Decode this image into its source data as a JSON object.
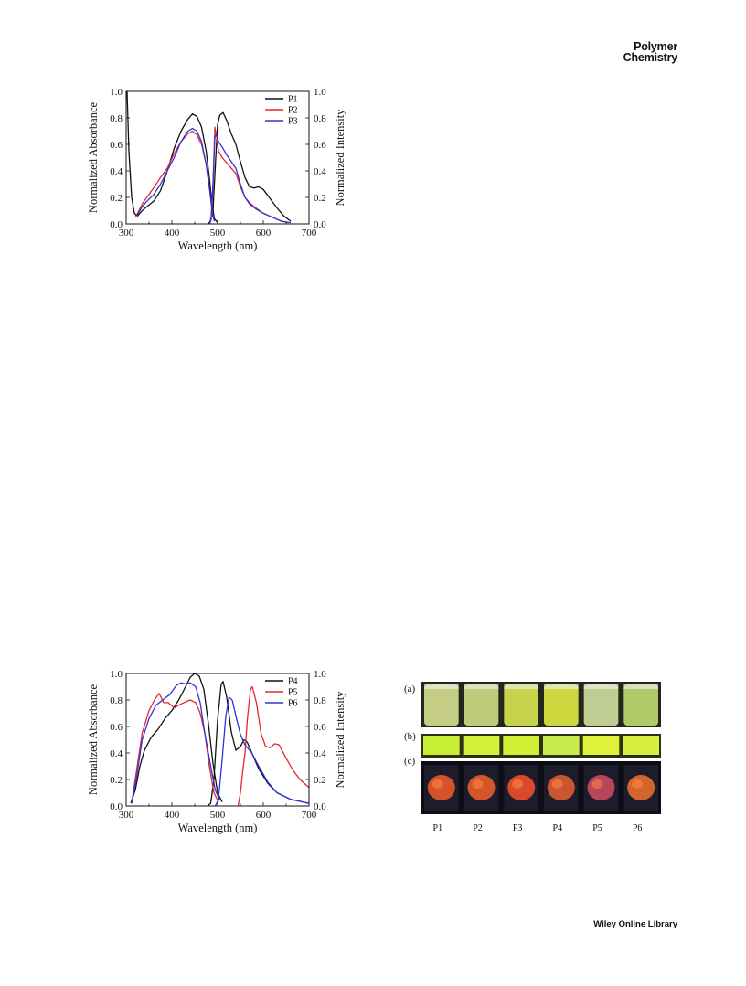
{
  "header": {
    "journal_line1": "Polymer",
    "journal_line2": "Chemistry"
  },
  "footer": {
    "publisher": "Wiley Online Library"
  },
  "chart_data": [
    {
      "type": "line",
      "xlabel": "Wavelength (nm)",
      "ylabel_left": "Normalized Absorbance",
      "ylabel_right": "Normalized Intensity",
      "xlim": [
        300,
        700
      ],
      "ylim": [
        0.0,
        1.0
      ],
      "xticks": [
        "300",
        "400",
        "500",
        "600",
        "700"
      ],
      "yticks": [
        "0.0",
        "0.2",
        "0.4",
        "0.6",
        "0.8",
        "1.0"
      ],
      "legend_position": "top-right",
      "series": [
        {
          "name": "P1",
          "color": "#111111",
          "absorption": [
            [
              302,
              1.0
            ],
            [
              306,
              0.55
            ],
            [
              312,
              0.2
            ],
            [
              318,
              0.08
            ],
            [
              325,
              0.06
            ],
            [
              335,
              0.1
            ],
            [
              345,
              0.13
            ],
            [
              360,
              0.17
            ],
            [
              375,
              0.25
            ],
            [
              390,
              0.4
            ],
            [
              405,
              0.57
            ],
            [
              420,
              0.7
            ],
            [
              435,
              0.79
            ],
            [
              445,
              0.83
            ],
            [
              455,
              0.81
            ],
            [
              465,
              0.73
            ],
            [
              475,
              0.55
            ],
            [
              482,
              0.35
            ],
            [
              488,
              0.15
            ],
            [
              493,
              0.04
            ],
            [
              500,
              0.01
            ]
          ],
          "emission": [
            [
              478,
              0.0
            ],
            [
              485,
              0.02
            ],
            [
              490,
              0.1
            ],
            [
              496,
              0.5
            ],
            [
              500,
              0.75
            ],
            [
              505,
              0.82
            ],
            [
              512,
              0.84
            ],
            [
              520,
              0.78
            ],
            [
              530,
              0.68
            ],
            [
              540,
              0.6
            ],
            [
              550,
              0.47
            ],
            [
              560,
              0.35
            ],
            [
              570,
              0.28
            ],
            [
              580,
              0.27
            ],
            [
              590,
              0.28
            ],
            [
              600,
              0.26
            ],
            [
              615,
              0.19
            ],
            [
              630,
              0.12
            ],
            [
              645,
              0.06
            ],
            [
              660,
              0.02
            ]
          ]
        },
        {
          "name": "P2",
          "color": "#e8262a",
          "absorption": [
            [
              320,
              0.06
            ],
            [
              325,
              0.08
            ],
            [
              335,
              0.15
            ],
            [
              345,
              0.2
            ],
            [
              360,
              0.27
            ],
            [
              375,
              0.35
            ],
            [
              390,
              0.42
            ],
            [
              405,
              0.53
            ],
            [
              420,
              0.62
            ],
            [
              435,
              0.68
            ],
            [
              445,
              0.7
            ],
            [
              455,
              0.67
            ],
            [
              465,
              0.6
            ],
            [
              475,
              0.45
            ],
            [
              483,
              0.25
            ],
            [
              488,
              0.1
            ],
            [
              492,
              0.03
            ]
          ],
          "emission": [
            [
              483,
              0.0
            ],
            [
              487,
              0.05
            ],
            [
              491,
              0.4
            ],
            [
              494,
              0.73
            ],
            [
              497,
              0.68
            ],
            [
              502,
              0.55
            ],
            [
              510,
              0.5
            ],
            [
              520,
              0.46
            ],
            [
              530,
              0.42
            ],
            [
              540,
              0.38
            ],
            [
              550,
              0.28
            ],
            [
              560,
              0.2
            ],
            [
              570,
              0.16
            ],
            [
              580,
              0.13
            ],
            [
              600,
              0.08
            ],
            [
              620,
              0.05
            ],
            [
              640,
              0.02
            ],
            [
              655,
              0.01
            ]
          ]
        },
        {
          "name": "P3",
          "color": "#2b35d8",
          "absorption": [
            [
              320,
              0.06
            ],
            [
              325,
              0.07
            ],
            [
              335,
              0.13
            ],
            [
              345,
              0.17
            ],
            [
              360,
              0.22
            ],
            [
              375,
              0.3
            ],
            [
              390,
              0.4
            ],
            [
              405,
              0.5
            ],
            [
              420,
              0.62
            ],
            [
              435,
              0.7
            ],
            [
              445,
              0.72
            ],
            [
              455,
              0.7
            ],
            [
              465,
              0.62
            ],
            [
              475,
              0.45
            ],
            [
              483,
              0.25
            ],
            [
              488,
              0.1
            ],
            [
              493,
              0.02
            ]
          ],
          "emission": [
            [
              482,
              0.0
            ],
            [
              486,
              0.05
            ],
            [
              490,
              0.3
            ],
            [
              494,
              0.65
            ],
            [
              497,
              0.68
            ],
            [
              502,
              0.62
            ],
            [
              510,
              0.58
            ],
            [
              520,
              0.52
            ],
            [
              530,
              0.47
            ],
            [
              540,
              0.42
            ],
            [
              550,
              0.3
            ],
            [
              560,
              0.2
            ],
            [
              570,
              0.15
            ],
            [
              585,
              0.11
            ],
            [
              600,
              0.08
            ],
            [
              620,
              0.05
            ],
            [
              640,
              0.02
            ],
            [
              660,
              0.01
            ]
          ]
        }
      ]
    },
    {
      "type": "line",
      "xlabel": "Wavelength (nm)",
      "ylabel_left": "Normalized Absorbance",
      "ylabel_right": "Normalized Intensity",
      "xlim": [
        300,
        700
      ],
      "ylim": [
        0.0,
        1.0
      ],
      "xticks": [
        "300",
        "400",
        "500",
        "600",
        "700"
      ],
      "yticks": [
        "0.0",
        "0.2",
        "0.4",
        "0.6",
        "0.8",
        "1.0"
      ],
      "legend_position": "top-right",
      "series": [
        {
          "name": "P4",
          "color": "#111111",
          "absorption": [
            [
              310,
              0.02
            ],
            [
              320,
              0.12
            ],
            [
              330,
              0.3
            ],
            [
              340,
              0.42
            ],
            [
              355,
              0.52
            ],
            [
              370,
              0.58
            ],
            [
              385,
              0.66
            ],
            [
              400,
              0.72
            ],
            [
              415,
              0.8
            ],
            [
              430,
              0.9
            ],
            [
              440,
              0.97
            ],
            [
              450,
              1.0
            ],
            [
              460,
              0.98
            ],
            [
              470,
              0.88
            ],
            [
              480,
              0.62
            ],
            [
              490,
              0.32
            ],
            [
              500,
              0.1
            ],
            [
              510,
              0.03
            ]
          ],
          "emission": [
            [
              478,
              0.0
            ],
            [
              485,
              0.02
            ],
            [
              492,
              0.2
            ],
            [
              500,
              0.65
            ],
            [
              508,
              0.92
            ],
            [
              512,
              0.94
            ],
            [
              520,
              0.82
            ],
            [
              530,
              0.56
            ],
            [
              540,
              0.42
            ],
            [
              550,
              0.45
            ],
            [
              558,
              0.5
            ],
            [
              565,
              0.48
            ],
            [
              575,
              0.4
            ],
            [
              590,
              0.28
            ],
            [
              610,
              0.17
            ],
            [
              630,
              0.1
            ],
            [
              660,
              0.05
            ],
            [
              700,
              0.02
            ]
          ]
        },
        {
          "name": "P5",
          "color": "#e8262a",
          "absorption": [
            [
              312,
              0.02
            ],
            [
              322,
              0.25
            ],
            [
              335,
              0.55
            ],
            [
              350,
              0.72
            ],
            [
              362,
              0.8
            ],
            [
              372,
              0.85
            ],
            [
              382,
              0.78
            ],
            [
              392,
              0.78
            ],
            [
              405,
              0.74
            ],
            [
              420,
              0.77
            ],
            [
              440,
              0.8
            ],
            [
              452,
              0.78
            ],
            [
              462,
              0.7
            ],
            [
              472,
              0.55
            ],
            [
              482,
              0.3
            ],
            [
              492,
              0.1
            ],
            [
              502,
              0.03
            ]
          ],
          "emission": [
            [
              545,
              0.0
            ],
            [
              550,
              0.1
            ],
            [
              555,
              0.26
            ],
            [
              560,
              0.4
            ],
            [
              565,
              0.65
            ],
            [
              572,
              0.88
            ],
            [
              576,
              0.9
            ],
            [
              585,
              0.78
            ],
            [
              595,
              0.55
            ],
            [
              605,
              0.45
            ],
            [
              615,
              0.44
            ],
            [
              625,
              0.47
            ],
            [
              635,
              0.46
            ],
            [
              650,
              0.36
            ],
            [
              665,
              0.27
            ],
            [
              680,
              0.2
            ],
            [
              700,
              0.14
            ]
          ]
        },
        {
          "name": "P6",
          "color": "#2b35d8",
          "absorption": [
            [
              312,
              0.02
            ],
            [
              322,
              0.2
            ],
            [
              335,
              0.5
            ],
            [
              350,
              0.66
            ],
            [
              365,
              0.76
            ],
            [
              380,
              0.8
            ],
            [
              395,
              0.84
            ],
            [
              410,
              0.91
            ],
            [
              420,
              0.93
            ],
            [
              432,
              0.92
            ],
            [
              440,
              0.93
            ],
            [
              452,
              0.9
            ],
            [
              462,
              0.78
            ],
            [
              472,
              0.55
            ],
            [
              485,
              0.3
            ],
            [
              495,
              0.12
            ],
            [
              505,
              0.04
            ]
          ],
          "emission": [
            [
              495,
              0.0
            ],
            [
              502,
              0.05
            ],
            [
              510,
              0.35
            ],
            [
              518,
              0.68
            ],
            [
              525,
              0.82
            ],
            [
              532,
              0.8
            ],
            [
              540,
              0.68
            ],
            [
              550,
              0.54
            ],
            [
              560,
              0.46
            ],
            [
              575,
              0.4
            ],
            [
              590,
              0.3
            ],
            [
              610,
              0.18
            ],
            [
              630,
              0.1
            ],
            [
              660,
              0.05
            ],
            [
              700,
              0.02
            ]
          ]
        }
      ]
    }
  ],
  "figure3": {
    "row_labels": [
      "(a)",
      "(b)",
      "(c)"
    ],
    "sample_labels": [
      "P1",
      "P2",
      "P3",
      "P4",
      "P5",
      "P6"
    ],
    "vial_colors": [
      "#cfd58a",
      "#c5d57d",
      "#d2dc4f",
      "#d8e040",
      "#c8d69a",
      "#b6d36e"
    ],
    "film_colors": [
      "#c9ef34",
      "#d3f23a",
      "#cff035",
      "#c7ec4c",
      "#dff13a",
      "#d8ef3f"
    ],
    "powder_colors": [
      "#e6572a",
      "#e35a2a",
      "#ea4e2a",
      "#d95a34",
      "#c44a5e",
      "#e46a2f"
    ]
  }
}
